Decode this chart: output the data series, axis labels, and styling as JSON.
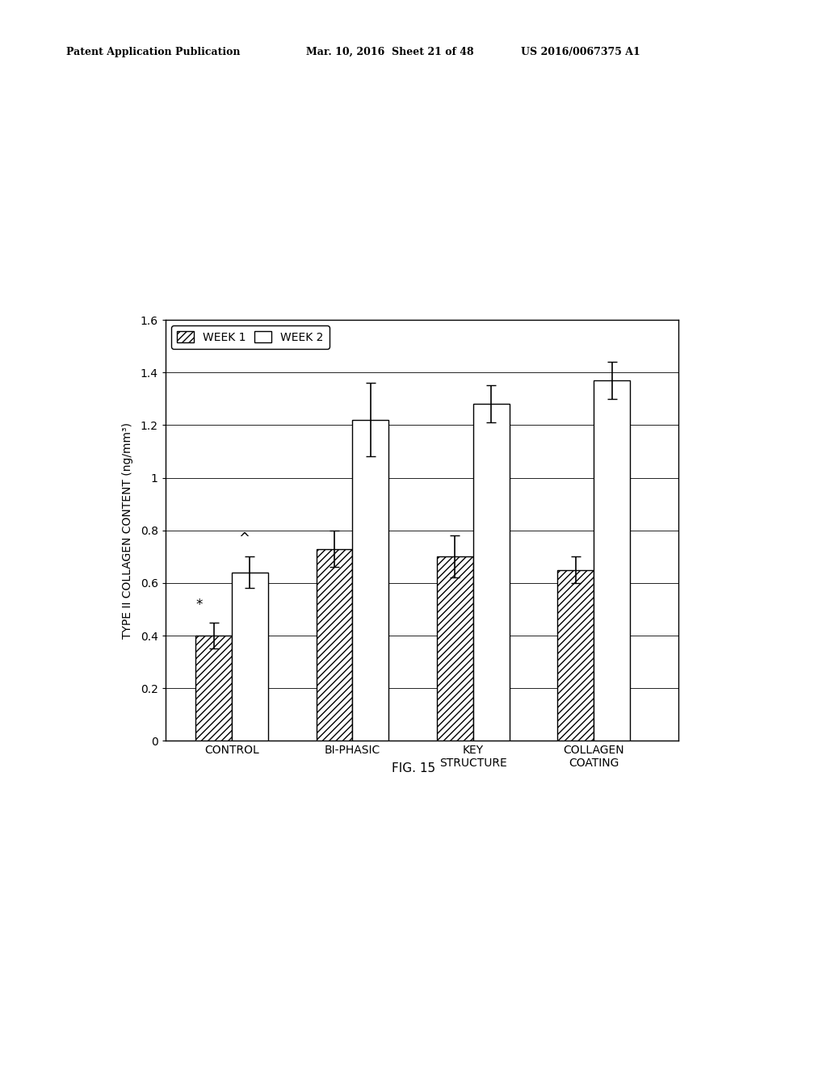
{
  "categories": [
    "CONTROL",
    "BI-PHASIC",
    "KEY\nSTRUCTURE",
    "COLLAGEN\nCOATING"
  ],
  "week1_values": [
    0.4,
    0.73,
    0.7,
    0.65
  ],
  "week1_errors": [
    0.05,
    0.07,
    0.08,
    0.05
  ],
  "week2_values": [
    0.64,
    1.22,
    1.28,
    1.37
  ],
  "week2_errors": [
    0.06,
    0.14,
    0.07,
    0.07
  ],
  "ylabel": "TYPE II COLLAGEN CONTENT (ng/mm³)",
  "ylim": [
    0,
    1.6
  ],
  "yticks": [
    0,
    0.2,
    0.4,
    0.6,
    0.8,
    1.0,
    1.2,
    1.4,
    1.6
  ],
  "ytick_labels": [
    "0",
    "0.2",
    "0.4",
    "0.6",
    "0.8",
    "1",
    "1.2",
    "1.4",
    "1.6"
  ],
  "legend_week1": "WEEK 1",
  "legend_week2": "WEEK 2",
  "fig_caption": "FIG. 15",
  "header_left": "Patent Application Publication",
  "header_mid": "Mar. 10, 2016  Sheet 21 of 48",
  "header_right": "US 2016/0067375 A1",
  "bar_width": 0.3,
  "week1_hatch": "////",
  "week1_facecolor": "#ffffff",
  "week2_facecolor": "#ffffff",
  "edgecolor": "#000000",
  "background_color": "#ffffff",
  "annotation_control_week1": "*",
  "annotation_control_week2": "^",
  "group_positions": [
    1,
    2,
    3,
    4
  ]
}
